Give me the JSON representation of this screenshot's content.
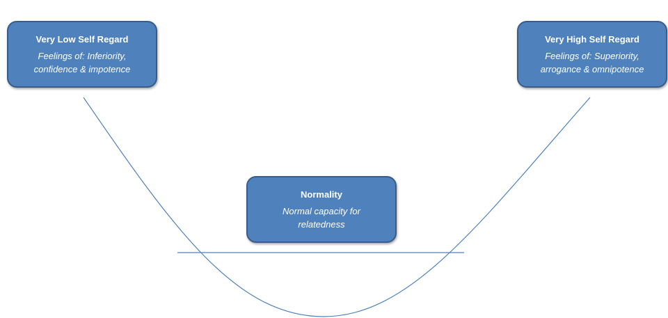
{
  "colors": {
    "box_fill": "#4f81bd",
    "box_border": "#385d8a",
    "line": "#4f81bd"
  },
  "left": {
    "title": "Very Low Self Regard",
    "subtitle": "Feelings of: Inferiority, confidence & impotence"
  },
  "right": {
    "title": "Very High Self Regard",
    "subtitle": "Feelings of: Superiority, arrogance & omnipotence"
  },
  "center": {
    "title": "Normality",
    "subtitle": "Normal capacity for relatedness"
  }
}
